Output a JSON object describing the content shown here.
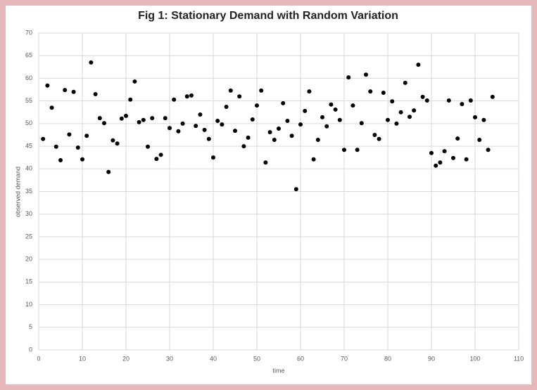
{
  "chart_data": {
    "type": "scatter",
    "title": "Fig 1: Stationary Demand with Random Variation",
    "x_label": "time",
    "y_label": "observed demand",
    "xlim": [
      0,
      110
    ],
    "xticks": [
      0,
      10,
      20,
      30,
      40,
      50,
      60,
      70,
      80,
      90,
      100,
      110
    ],
    "ylim": [
      0,
      70
    ],
    "yticks": [
      0,
      5,
      10,
      15,
      20,
      25,
      30,
      35,
      40,
      45,
      50,
      55,
      60,
      65,
      70
    ],
    "grid": true,
    "color": "#000000",
    "x": [
      1,
      2,
      3,
      4,
      5,
      6,
      7,
      8,
      9,
      10,
      11,
      12,
      13,
      14,
      15,
      16,
      17,
      18,
      19,
      20,
      21,
      22,
      23,
      24,
      25,
      26,
      27,
      28,
      29,
      30,
      31,
      32,
      33,
      34,
      35,
      36,
      37,
      38,
      39,
      40,
      41,
      42,
      43,
      44,
      45,
      46,
      47,
      48,
      49,
      50,
      51,
      52,
      53,
      54,
      55,
      56,
      57,
      58,
      59,
      60,
      61,
      62,
      63,
      64,
      65,
      66,
      67,
      68,
      69,
      70,
      71,
      72,
      73,
      74,
      75,
      76,
      77,
      78,
      79,
      80,
      81,
      82,
      83,
      84,
      85,
      86,
      87,
      88,
      89,
      90,
      91,
      92,
      93,
      94,
      95,
      96,
      97,
      98,
      99,
      100,
      101,
      102,
      103,
      104
    ],
    "values": [
      46.6,
      58.4,
      53.5,
      44.9,
      41.9,
      57.4,
      47.6,
      57.0,
      44.7,
      42.1,
      47.3,
      63.5,
      56.5,
      51.2,
      50.1,
      39.3,
      46.3,
      45.6,
      51.1,
      51.7,
      55.3,
      59.3,
      50.3,
      50.8,
      44.9,
      51.2,
      42.2,
      43.1,
      51.2,
      49.0,
      55.3,
      48.3,
      50.0,
      56.0,
      56.2,
      49.5,
      52.0,
      48.6,
      46.6,
      42.5,
      50.6,
      49.8,
      53.7,
      57.3,
      48.4,
      56.0,
      45.0,
      46.9,
      50.9,
      54.0,
      57.3,
      41.4,
      48.1,
      46.4,
      48.9,
      54.5,
      50.6,
      47.3,
      35.5,
      49.8,
      52.8,
      57.1,
      42.1,
      46.4,
      51.4,
      49.4,
      54.2,
      53.1,
      50.8,
      44.2,
      60.2,
      54.0,
      44.2,
      50.1,
      60.8,
      57.1,
      47.5,
      46.6,
      56.8,
      50.8,
      54.9,
      50.0,
      52.5,
      59.0,
      51.5,
      52.9,
      63.0,
      55.9,
      55.1,
      43.5,
      40.7,
      41.4,
      43.9,
      55.1,
      42.4,
      46.7,
      54.3,
      42.1,
      55.1,
      51.4,
      46.4,
      50.8,
      44.2,
      55.9
    ]
  }
}
